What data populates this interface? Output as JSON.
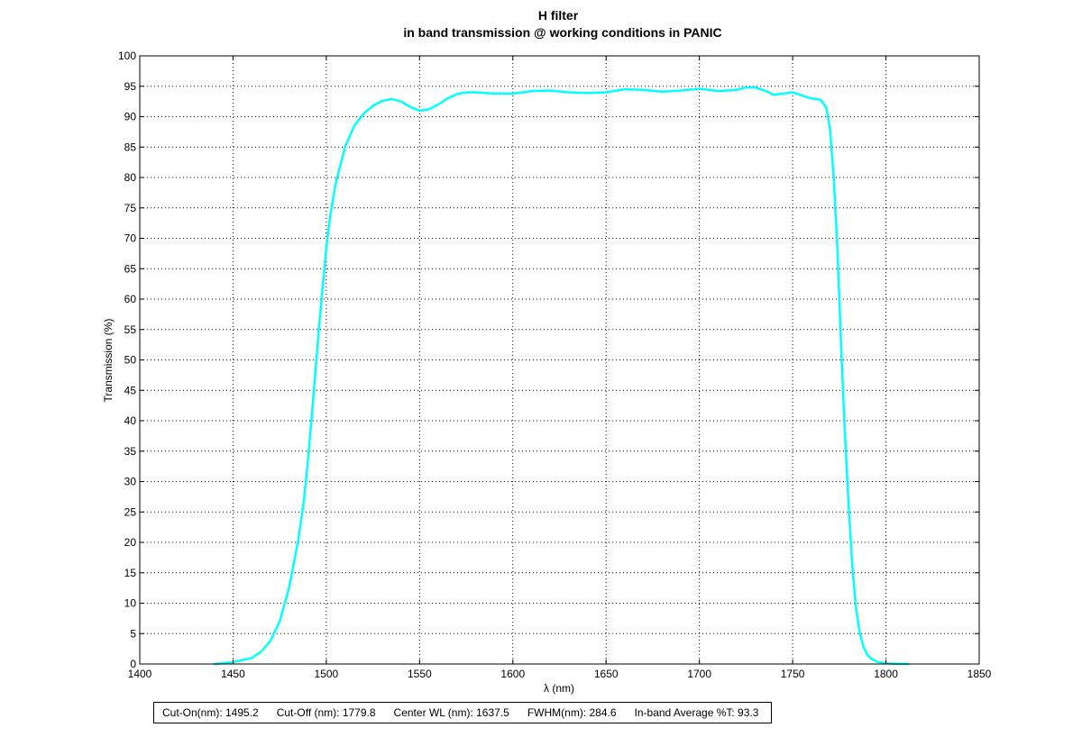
{
  "chart_data": {
    "type": "line",
    "title": "H filter",
    "subtitle": "in band transmission @ working conditions in PANIC",
    "xlabel": "λ (nm)",
    "ylabel": "Transmission (%)",
    "xlim": [
      1400,
      1850
    ],
    "ylim": [
      0,
      100
    ],
    "xticks": [
      1400,
      1450,
      1500,
      1550,
      1600,
      1650,
      1700,
      1750,
      1800,
      1850
    ],
    "yticks": [
      0,
      5,
      10,
      15,
      20,
      25,
      30,
      35,
      40,
      45,
      50,
      55,
      60,
      65,
      70,
      75,
      80,
      85,
      90,
      95,
      100
    ],
    "grid": true,
    "series": [
      {
        "color": "#00ffff",
        "x": [
          1440,
          1450,
          1460,
          1465,
          1470,
          1475,
          1480,
          1485,
          1488,
          1490,
          1492,
          1494,
          1496,
          1498,
          1500,
          1502,
          1505,
          1510,
          1515,
          1520,
          1525,
          1530,
          1535,
          1540,
          1545,
          1550,
          1555,
          1560,
          1565,
          1570,
          1575,
          1580,
          1590,
          1600,
          1610,
          1620,
          1630,
          1640,
          1650,
          1660,
          1670,
          1680,
          1690,
          1700,
          1710,
          1720,
          1725,
          1730,
          1735,
          1740,
          1745,
          1750,
          1755,
          1760,
          1765,
          1768,
          1770,
          1772,
          1774,
          1776,
          1778,
          1780,
          1782,
          1784,
          1786,
          1788,
          1790,
          1792,
          1795,
          1800,
          1805,
          1812
        ],
        "y": [
          0,
          0.3,
          1.0,
          2.0,
          3.8,
          7.0,
          12.5,
          20.5,
          27.0,
          33.0,
          40.0,
          47.5,
          55.0,
          62.0,
          68.5,
          73.5,
          79.0,
          85.0,
          88.5,
          90.5,
          91.8,
          92.6,
          92.9,
          92.5,
          91.6,
          91.0,
          91.2,
          92.0,
          93.0,
          93.7,
          94.0,
          94.0,
          93.8,
          93.8,
          94.2,
          94.3,
          94.0,
          93.9,
          94.0,
          94.5,
          94.4,
          94.1,
          94.3,
          94.6,
          94.2,
          94.4,
          94.8,
          94.8,
          94.3,
          93.6,
          93.8,
          94.0,
          93.5,
          93.0,
          92.8,
          91.5,
          88.0,
          80.0,
          68.0,
          52.0,
          38.0,
          26.0,
          16.0,
          9.0,
          5.0,
          2.8,
          1.5,
          0.9,
          0.4,
          0.1,
          0.05,
          0
        ]
      }
    ],
    "stats": [
      "Cut-On(nm): 1495.2",
      "Cut-Off (nm): 1779.8",
      "Center WL (nm): 1637.5",
      "FWHM(nm): 284.6",
      "In-band Average %T: 93.3"
    ]
  }
}
